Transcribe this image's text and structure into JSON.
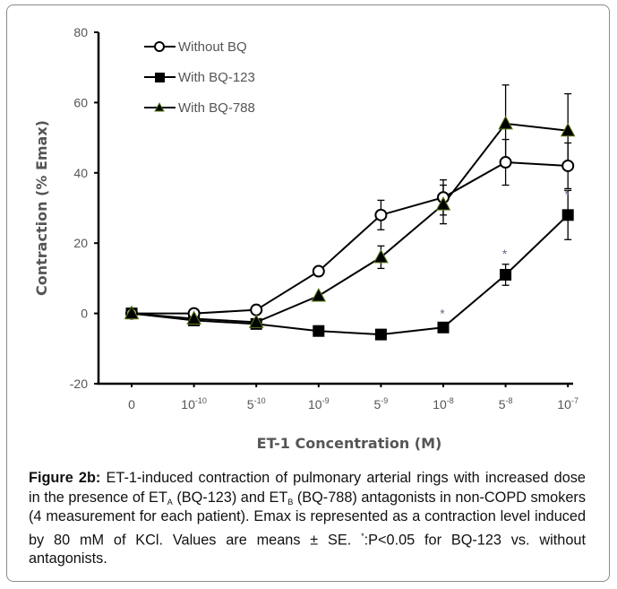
{
  "chart_data": {
    "type": "line",
    "title": "",
    "xlabel": "ET-1 Concentration (M)",
    "ylabel": "Contraction (% Emax)",
    "ylim": [
      -20,
      80
    ],
    "yticks": [
      -20,
      0,
      20,
      40,
      60,
      80
    ],
    "grid": false,
    "legend_position": "top-left",
    "categories": [
      {
        "base": "0",
        "exp": ""
      },
      {
        "base": "10",
        "exp": "-10"
      },
      {
        "base": "5",
        "exp": "-10"
      },
      {
        "base": "10",
        "exp": "-9"
      },
      {
        "base": "5",
        "exp": "-9"
      },
      {
        "base": "10",
        "exp": "-8"
      },
      {
        "base": "5",
        "exp": "-8"
      },
      {
        "base": "10",
        "exp": "-7"
      }
    ],
    "series": [
      {
        "name": "Without BQ",
        "marker": "circle-open",
        "values": [
          0,
          0,
          1,
          12,
          28,
          33,
          43,
          42
        ],
        "se": [
          0,
          0,
          0,
          0,
          4.2,
          5,
          6.5,
          6.5
        ]
      },
      {
        "name": "With BQ-123",
        "marker": "square-filled",
        "values": [
          0,
          -2,
          -3,
          -5,
          -6,
          -4,
          11,
          28
        ],
        "se": [
          0,
          0,
          0,
          0,
          0,
          0,
          3,
          7
        ]
      },
      {
        "name": "With BQ-788",
        "marker": "triangle-filled",
        "values": [
          0,
          -1.5,
          -2.5,
          5,
          16,
          31,
          54,
          52
        ],
        "se": [
          0,
          0,
          0,
          0,
          3.2,
          5.5,
          11,
          10.5
        ]
      }
    ],
    "annotations": [
      {
        "text": "*",
        "category_index": 5,
        "y": 0
      },
      {
        "text": "*",
        "category_index": 6,
        "y": 17
      },
      {
        "text": "*",
        "category_index": 7,
        "y": 34
      }
    ]
  },
  "caption": {
    "label": "Figure 2b:",
    "text_1": " ET-1-induced contraction of pulmonary arterial rings with increased dose in the presence of ET",
    "sub_a": "A",
    "text_2": " (BQ-123) and ET",
    "sub_b": "B",
    "text_3": " (BQ-788) antagonists in non-COPD smokers (4 measurement for each patient).  Emax is represented as a contraction level induced by 80 mM of KCl. Values are means ± SE. ",
    "sup_star": "*",
    "text_4": ":P<0.05 for BQ-123 vs. without antagonists."
  },
  "colors": {
    "line": "#000000",
    "triangle_edge": "#5a7a1a",
    "text": "#555555",
    "frame": "#8a8a8a"
  }
}
